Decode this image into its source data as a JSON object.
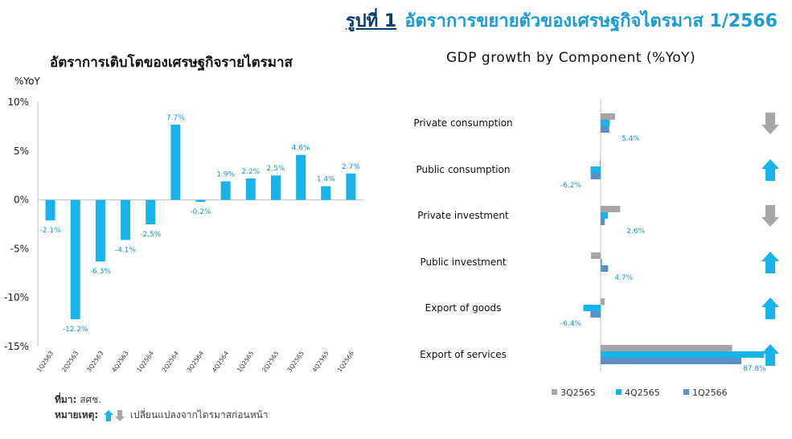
{
  "header": {
    "number": "รูปที่ 1",
    "title": "อัตราการขยายตัวของเศรษฐกิจไตรมาส 1/2566"
  },
  "left_chart_title": "อัตราการเติบโตของเศรษฐกิจรายไตรมาส",
  "right_chart_title": "GDP growth by Component  (%YoY)",
  "notes": {
    "source_label": "ที่มา:",
    "source_value": "สศช.",
    "remark_label": "หมายเหตุ:",
    "remark_value": "เปลี่ยนแปลงจากไตรมาสก่อนหน้า"
  },
  "colors": {
    "blue": "#17b3ea",
    "gray": "#a6a6a6",
    "steel": "#5b8fc7",
    "dark_title": "#0c3a6e",
    "accent": "#1b9ad6"
  },
  "chart_data": [
    {
      "type": "bar",
      "title": "อัตราการเติบโตของเศรษฐกิจรายไตรมาส",
      "ylabel": "%YoY",
      "ylim": [
        -15,
        10
      ],
      "yticks": [
        "10%",
        "5%",
        "0%",
        "-5%",
        "-10%",
        "-15%"
      ],
      "yticks_values": [
        10,
        5,
        0,
        -5,
        -10,
        -15
      ],
      "categories": [
        "1Q2563",
        "2Q2563",
        "3Q2563",
        "4Q2563",
        "1Q2564",
        "2Q2564",
        "3Q2564",
        "4Q2564",
        "1Q2565",
        "2Q2565",
        "3Q2565",
        "4Q2565",
        "1Q2566"
      ],
      "values": [
        -2.1,
        -12.2,
        -6.3,
        -4.1,
        -2.5,
        7.7,
        -0.2,
        1.9,
        2.2,
        2.5,
        4.6,
        1.4,
        2.7
      ],
      "labels": [
        "-2.1%",
        "-12.2%",
        "-6.3%",
        "-4.1%",
        "-2.5%",
        "7.7%",
        "-0.2%",
        "1.9%",
        "2.2%",
        "2.5%",
        "4.6%",
        "1.4%",
        "2.7%"
      ],
      "color": "#17b3ea",
      "grid": false
    },
    {
      "type": "bar",
      "orientation": "horizontal",
      "title": "GDP growth by Component  (%YoY)",
      "categories": [
        "Private consumption",
        "Public consumption",
        "Private investment",
        "Public investment",
        "Export of goods",
        "Export of services"
      ],
      "series": [
        {
          "name": "3Q2565",
          "color": "#a6a6a6",
          "values": [
            9.0,
            -0.6,
            12.2,
            -6.0,
            2.5,
            82.0
          ]
        },
        {
          "name": "4Q2565",
          "color": "#17b3ea",
          "values": [
            5.7,
            -6.3,
            4.5,
            0.8,
            -10.8,
            102.0
          ]
        },
        {
          "name": "1Q2566",
          "color": "#5b8fc7",
          "values": [
            5.4,
            -6.2,
            2.6,
            4.7,
            -6.4,
            87.8
          ]
        }
      ],
      "labels": [
        "5.4%",
        "-6.2%",
        "2.6%",
        "4.7%",
        "-6.4%",
        "87.8%"
      ],
      "trend_arrows": [
        "down",
        "up",
        "down",
        "up",
        "up",
        "up"
      ],
      "legend_position": "bottom",
      "grid": false
    }
  ]
}
